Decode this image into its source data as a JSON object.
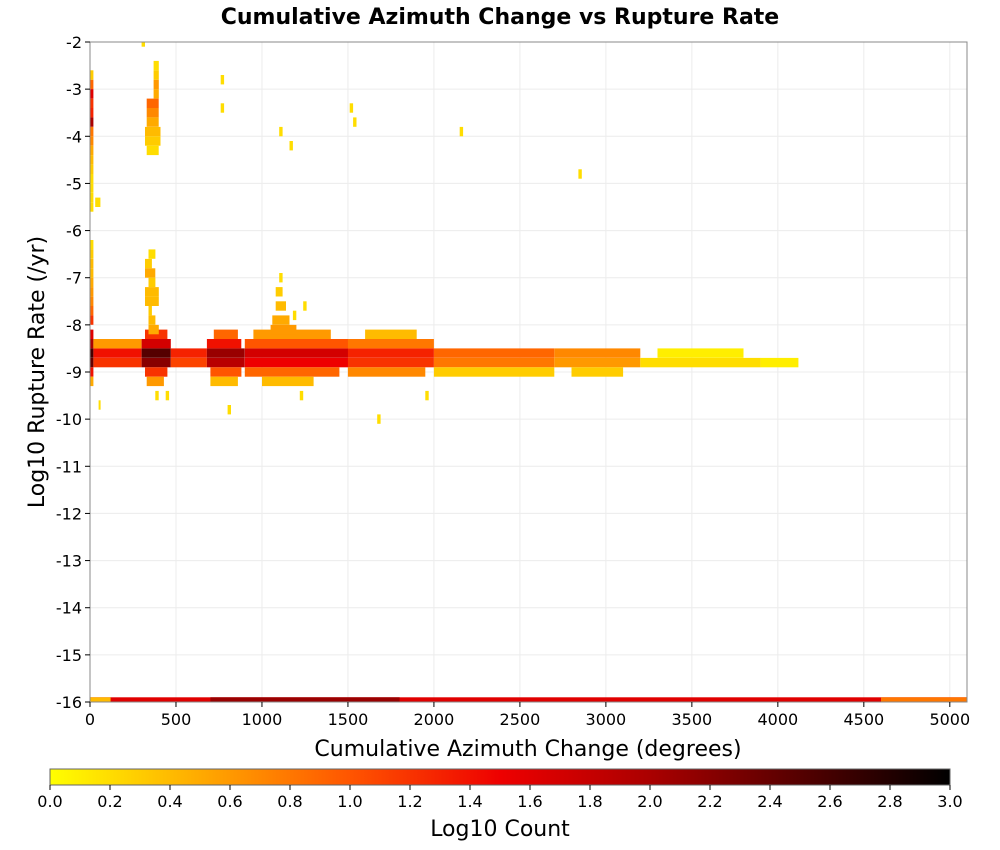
{
  "chart_data": {
    "type": "heatmap",
    "title": "Cumulative Azimuth Change vs Rupture Rate",
    "xlabel": "Cumulative Azimuth Change (degrees)",
    "ylabel": "Log10 Rupture Rate (/yr)",
    "xlim": [
      0,
      5100
    ],
    "ylim": [
      -16,
      -2
    ],
    "x_ticks": [
      0,
      500,
      1000,
      1500,
      2000,
      2500,
      3000,
      3500,
      4000,
      4500,
      5000
    ],
    "y_ticks": [
      -2,
      -3,
      -4,
      -5,
      -6,
      -7,
      -8,
      -9,
      -10,
      -11,
      -12,
      -13,
      -14,
      -15,
      -16
    ],
    "grid": true,
    "colorbar": {
      "label": "Log10 Count",
      "range": [
        0.0,
        3.0
      ],
      "ticks": [
        "0.0",
        "0.2",
        "0.4",
        "0.6",
        "0.8",
        "1.0",
        "1.2",
        "1.4",
        "1.6",
        "1.8",
        "2.0",
        "2.2",
        "2.4",
        "2.6",
        "2.8",
        "3.0"
      ],
      "placement": "bottom",
      "colormap": [
        "#ffff00",
        "#ffaa00",
        "#ff5500",
        "#ee0000",
        "#aa0000",
        "#550000",
        "#000000"
      ]
    },
    "bin": {
      "x_width": 10,
      "y_height": 0.2
    },
    "cells": [
      [
        -16,
        0,
        5100,
        1.6
      ],
      [
        -16,
        700,
        1800,
        2.1
      ],
      [
        -16,
        0,
        120,
        0.4
      ],
      [
        -16,
        4600,
        5100,
        0.8
      ],
      [
        -8.6,
        0,
        20,
        2.6
      ],
      [
        -8.8,
        0,
        20,
        2.4
      ],
      [
        -8.4,
        0,
        20,
        2.0
      ],
      [
        -8.2,
        0,
        20,
        1.6
      ],
      [
        -9.0,
        0,
        20,
        1.4
      ],
      [
        -9.2,
        0,
        20,
        0.5
      ],
      [
        -8.6,
        20,
        300,
        1.4
      ],
      [
        -8.8,
        20,
        300,
        1.2
      ],
      [
        -8.4,
        20,
        300,
        0.6
      ],
      [
        -8.6,
        300,
        470,
        2.5
      ],
      [
        -8.8,
        300,
        470,
        2.2
      ],
      [
        -8.4,
        300,
        470,
        1.7
      ],
      [
        -8.2,
        320,
        450,
        1.2
      ],
      [
        -9.0,
        320,
        450,
        1.2
      ],
      [
        -9.2,
        330,
        430,
        0.6
      ],
      [
        -8.6,
        470,
        680,
        1.3
      ],
      [
        -8.8,
        470,
        680,
        1.1
      ],
      [
        -8.6,
        680,
        900,
        2.1
      ],
      [
        -8.8,
        680,
        900,
        1.9
      ],
      [
        -8.4,
        680,
        880,
        1.4
      ],
      [
        -9.0,
        700,
        880,
        1.0
      ],
      [
        -8.2,
        720,
        860,
        0.9
      ],
      [
        -9.2,
        700,
        860,
        0.4
      ],
      [
        -8.6,
        900,
        1500,
        1.7
      ],
      [
        -8.8,
        900,
        1500,
        1.5
      ],
      [
        -8.4,
        900,
        1500,
        1.0
      ],
      [
        -9.0,
        900,
        1450,
        0.9
      ],
      [
        -8.2,
        950,
        1400,
        0.6
      ],
      [
        -9.2,
        1000,
        1300,
        0.4
      ],
      [
        -8.6,
        1500,
        2000,
        1.3
      ],
      [
        -8.8,
        1500,
        2000,
        1.2
      ],
      [
        -8.4,
        1500,
        2000,
        0.8
      ],
      [
        -9.0,
        1500,
        1950,
        0.7
      ],
      [
        -8.2,
        1600,
        1900,
        0.4
      ],
      [
        -8.6,
        2000,
        2700,
        0.9
      ],
      [
        -8.8,
        2000,
        2700,
        0.8
      ],
      [
        -9.0,
        2000,
        2700,
        0.3
      ],
      [
        -8.6,
        2700,
        3200,
        0.7
      ],
      [
        -8.8,
        2700,
        3200,
        0.6
      ],
      [
        -9.0,
        2800,
        3100,
        0.3
      ],
      [
        -8.8,
        3200,
        3900,
        0.2
      ],
      [
        -8.6,
        3300,
        3800,
        0.1
      ],
      [
        -8.8,
        3900,
        4120,
        0.1
      ],
      [
        -2.9,
        0,
        20,
        0.9
      ],
      [
        -3.1,
        0,
        20,
        1.6
      ],
      [
        -3.3,
        0,
        20,
        1.2
      ],
      [
        -3.5,
        0,
        20,
        1.3
      ],
      [
        -3.7,
        0,
        20,
        2.0
      ],
      [
        -3.9,
        0,
        20,
        0.8
      ],
      [
        -2.7,
        0,
        20,
        0.3
      ],
      [
        -4.1,
        0,
        20,
        0.7
      ],
      [
        -4.3,
        0,
        20,
        0.5
      ],
      [
        -4.5,
        0,
        20,
        0.4
      ],
      [
        -4.7,
        0,
        20,
        0.3
      ],
      [
        -4.9,
        0,
        20,
        0.2
      ],
      [
        -5.1,
        0,
        20,
        0.2
      ],
      [
        -5.3,
        0,
        20,
        0.2
      ],
      [
        -5.5,
        0,
        20,
        0.2
      ],
      [
        -6.3,
        0,
        20,
        0.2
      ],
      [
        -6.5,
        0,
        20,
        0.3
      ],
      [
        -6.7,
        0,
        20,
        0.4
      ],
      [
        -6.9,
        0,
        20,
        0.4
      ],
      [
        -7.1,
        0,
        20,
        0.5
      ],
      [
        -7.3,
        0,
        20,
        0.6
      ],
      [
        -7.5,
        0,
        20,
        0.7
      ],
      [
        -7.7,
        0,
        20,
        0.9
      ],
      [
        -7.9,
        0,
        20,
        1.2
      ],
      [
        -2.9,
        370,
        400,
        0.6
      ],
      [
        -2.7,
        370,
        400,
        0.3
      ],
      [
        -2.5,
        370,
        400,
        0.2
      ],
      [
        -3.1,
        370,
        400,
        0.5
      ],
      [
        -3.3,
        330,
        400,
        0.9
      ],
      [
        -3.5,
        330,
        400,
        0.7
      ],
      [
        -3.7,
        330,
        400,
        0.5
      ],
      [
        -3.9,
        320,
        410,
        0.4
      ],
      [
        -4.1,
        320,
        410,
        0.3
      ],
      [
        -4.3,
        330,
        400,
        0.2
      ],
      [
        -6.5,
        340,
        380,
        0.2
      ],
      [
        -6.7,
        320,
        360,
        0.3
      ],
      [
        -6.9,
        320,
        380,
        0.5
      ],
      [
        -7.1,
        340,
        380,
        0.3
      ],
      [
        -7.3,
        320,
        400,
        0.4
      ],
      [
        -7.5,
        320,
        400,
        0.4
      ],
      [
        -7.7,
        340,
        360,
        0.3
      ],
      [
        -7.9,
        340,
        380,
        0.4
      ],
      [
        -8.1,
        340,
        400,
        0.5
      ],
      [
        -5.4,
        30,
        60,
        0.2
      ],
      [
        -2.0,
        300,
        320,
        0.2
      ],
      [
        -2.8,
        760,
        780,
        0.2
      ],
      [
        -3.4,
        760,
        780,
        0.2
      ],
      [
        -3.9,
        1100,
        1120,
        0.2
      ],
      [
        -4.2,
        1160,
        1180,
        0.2
      ],
      [
        -3.4,
        1510,
        1530,
        0.2
      ],
      [
        -3.7,
        1530,
        1550,
        0.2
      ],
      [
        -3.9,
        2150,
        2170,
        0.2
      ],
      [
        -4.8,
        2840,
        2860,
        0.2
      ],
      [
        -7.0,
        1100,
        1120,
        0.2
      ],
      [
        -7.3,
        1080,
        1120,
        0.3
      ],
      [
        -7.6,
        1080,
        1140,
        0.4
      ],
      [
        -7.9,
        1060,
        1160,
        0.5
      ],
      [
        -8.1,
        1050,
        1200,
        0.6
      ],
      [
        -7.8,
        1180,
        1200,
        0.2
      ],
      [
        -7.6,
        1240,
        1260,
        0.2
      ],
      [
        -9.5,
        380,
        400,
        0.2
      ],
      [
        -9.5,
        440,
        460,
        0.2
      ],
      [
        -9.8,
        800,
        820,
        0.2
      ],
      [
        -9.7,
        50,
        60,
        0.2
      ],
      [
        -9.5,
        1220,
        1240,
        0.2
      ],
      [
        -10.0,
        1670,
        1690,
        0.2
      ],
      [
        -9.5,
        1950,
        1970,
        0.2
      ]
    ]
  }
}
